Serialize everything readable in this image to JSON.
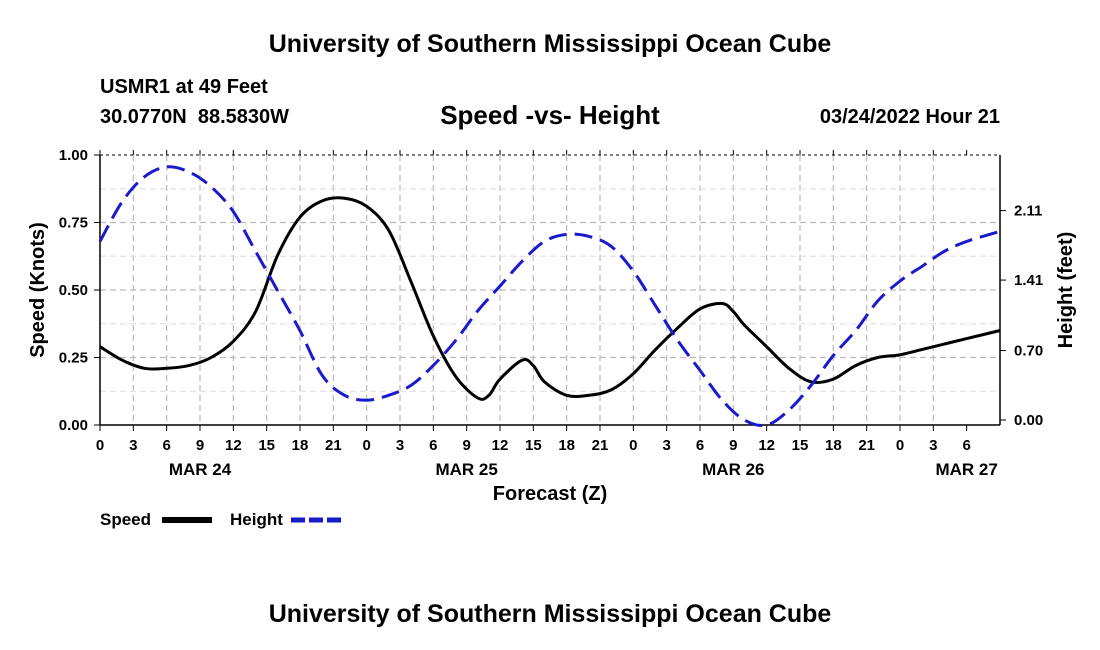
{
  "header": {
    "title": "University of Southern Mississippi Ocean Cube",
    "station": "USMR1 at 49 Feet",
    "location": "30.0770N  88.5830W",
    "subtitle": "Speed -vs- Height",
    "datetime": "03/24/2022 Hour 21"
  },
  "footer": {
    "title": "University of Southern Mississippi Ocean Cube"
  },
  "legend": {
    "speed_label": "Speed",
    "height_label": "Height"
  },
  "colors": {
    "speed": "#000000",
    "height": "#1a1acc",
    "grid": "#bbbbbb"
  },
  "chart_data": {
    "type": "line",
    "title": "Speed -vs- Height",
    "xlabel": "Forecast (Z)",
    "ylabel": "Speed (Knots)",
    "y2label": "Height (feet)",
    "xlim": [
      0,
      81
    ],
    "ylim": [
      0,
      1.0
    ],
    "y2lim": [
      -0.05,
      2.67
    ],
    "grid": true,
    "legend_position": "bottom-left",
    "x_tick_labels": [
      "0",
      "3",
      "6",
      "9",
      "12",
      "15",
      "18",
      "21",
      "0",
      "3",
      "6",
      "9",
      "12",
      "15",
      "18",
      "21",
      "0",
      "3",
      "6",
      "9",
      "12",
      "15",
      "18",
      "21",
      "0",
      "3",
      "6"
    ],
    "date_labels": [
      {
        "hour": 9,
        "label": "MAR 24"
      },
      {
        "hour": 33,
        "label": "MAR 25"
      },
      {
        "hour": 57,
        "label": "MAR 26"
      },
      {
        "hour": 78,
        "label": "MAR 27"
      }
    ],
    "y_ticks": [
      "0.00",
      "0.25",
      "0.50",
      "0.75",
      "1.00"
    ],
    "y_tick_values": [
      0,
      0.25,
      0.5,
      0.75,
      1.0
    ],
    "y2_ticks": [
      "0.00",
      "0.70",
      "1.41",
      "2.11"
    ],
    "y2_tick_values": [
      0,
      0.7,
      1.41,
      2.11
    ],
    "series": [
      {
        "name": "Speed",
        "axis": "left",
        "style": "solid",
        "x": [
          0,
          2,
          4,
          6,
          8,
          10,
          12,
          14,
          16,
          18,
          20,
          22,
          24,
          26,
          28,
          30,
          32,
          34,
          35,
          36,
          38,
          39,
          40,
          42,
          44,
          46,
          48,
          50,
          52,
          54,
          56,
          57,
          58,
          60,
          62,
          64,
          66,
          68,
          70,
          72,
          74,
          76,
          78,
          81
        ],
        "values": [
          0.29,
          0.24,
          0.21,
          0.21,
          0.22,
          0.25,
          0.31,
          0.42,
          0.63,
          0.77,
          0.83,
          0.84,
          0.81,
          0.72,
          0.53,
          0.33,
          0.18,
          0.1,
          0.11,
          0.17,
          0.24,
          0.22,
          0.16,
          0.11,
          0.11,
          0.13,
          0.19,
          0.28,
          0.36,
          0.43,
          0.45,
          0.42,
          0.37,
          0.29,
          0.21,
          0.16,
          0.17,
          0.22,
          0.25,
          0.26,
          0.28,
          0.3,
          0.32,
          0.35
        ]
      },
      {
        "name": "Height",
        "axis": "right",
        "style": "dashed",
        "x": [
          0,
          2,
          4,
          6,
          8,
          10,
          12,
          14,
          16,
          18,
          20,
          22,
          24,
          26,
          28,
          30,
          32,
          34,
          36,
          38,
          40,
          42,
          44,
          46,
          48,
          50,
          52,
          54,
          56,
          58,
          60,
          62,
          64,
          66,
          68,
          70,
          72,
          74,
          76,
          78,
          81
        ],
        "values": [
          1.8,
          2.2,
          2.45,
          2.55,
          2.5,
          2.35,
          2.1,
          1.7,
          1.3,
          0.9,
          0.45,
          0.25,
          0.2,
          0.25,
          0.35,
          0.55,
          0.8,
          1.1,
          1.35,
          1.6,
          1.8,
          1.87,
          1.85,
          1.75,
          1.5,
          1.15,
          0.8,
          0.5,
          0.2,
          0.0,
          -0.05,
          0.1,
          0.35,
          0.65,
          0.9,
          1.2,
          1.4,
          1.55,
          1.7,
          1.8,
          1.9
        ]
      }
    ]
  }
}
